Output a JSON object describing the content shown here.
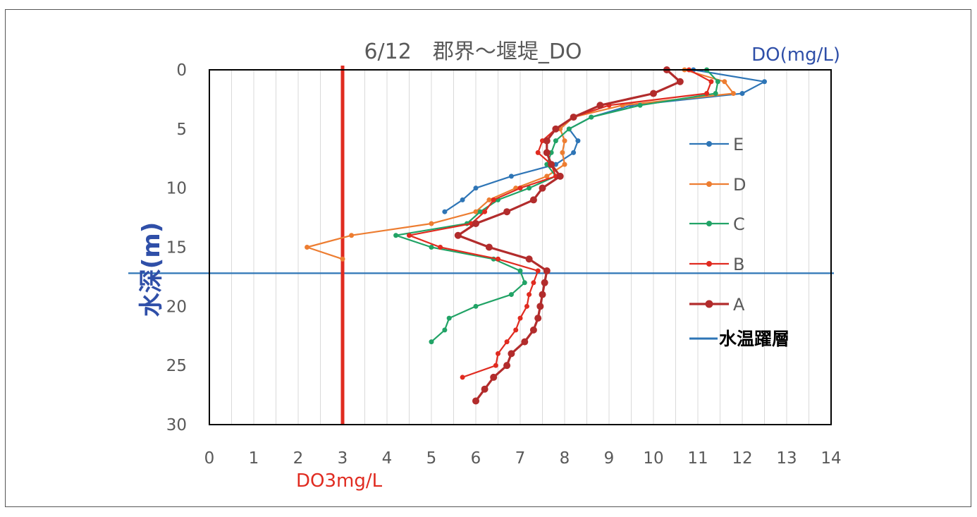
{
  "chart_data": {
    "type": "line",
    "title": "6/12　郡界～堰堤_DO",
    "xlabel": "DO(mg/L)",
    "ylabel": "水深(m)",
    "xlim": [
      0,
      14
    ],
    "ylim": [
      0,
      30
    ],
    "y_inverted": true,
    "x_ticks": [
      "0",
      "1",
      "2",
      "3",
      "4",
      "5",
      "6",
      "7",
      "8",
      "9",
      "10",
      "11",
      "12",
      "13",
      "14"
    ],
    "y_ticks": [
      "0",
      "5",
      "10",
      "15",
      "20",
      "25",
      "30"
    ],
    "grid": "vertical",
    "legend_position": "right",
    "series": [
      {
        "name": "E",
        "color": "#2e75b6",
        "marker_size": 3.5,
        "width": 2.2,
        "points": [
          [
            10.9,
            0
          ],
          [
            12.5,
            1
          ],
          [
            12.0,
            2
          ],
          [
            9.5,
            3
          ],
          [
            8.6,
            4
          ],
          [
            8.1,
            5
          ],
          [
            8.3,
            6
          ],
          [
            8.2,
            7
          ],
          [
            7.8,
            8
          ],
          [
            6.8,
            9
          ],
          [
            6.0,
            10
          ],
          [
            5.7,
            11
          ],
          [
            5.3,
            12
          ]
        ]
      },
      {
        "name": "D",
        "color": "#ed7d31",
        "marker_size": 3.5,
        "width": 2.2,
        "points": [
          [
            10.7,
            0
          ],
          [
            11.6,
            1
          ],
          [
            11.8,
            2
          ],
          [
            9.3,
            3
          ],
          [
            8.2,
            4
          ],
          [
            7.9,
            5
          ],
          [
            8.0,
            6
          ],
          [
            7.95,
            7
          ],
          [
            8.0,
            8
          ],
          [
            7.6,
            9
          ],
          [
            6.9,
            10
          ],
          [
            6.3,
            11
          ],
          [
            6.0,
            12
          ],
          [
            5.0,
            13
          ],
          [
            3.2,
            14
          ],
          [
            2.2,
            15
          ],
          [
            3.0,
            16
          ]
        ]
      },
      {
        "name": "C",
        "color": "#21a366",
        "marker_size": 3.5,
        "width": 2.2,
        "points": [
          [
            11.2,
            0
          ],
          [
            11.45,
            1
          ],
          [
            11.4,
            2
          ],
          [
            9.7,
            3
          ],
          [
            8.6,
            4
          ],
          [
            8.1,
            5
          ],
          [
            7.8,
            6
          ],
          [
            7.7,
            7
          ],
          [
            7.6,
            8
          ],
          [
            7.8,
            9
          ],
          [
            7.2,
            10
          ],
          [
            6.5,
            11
          ],
          [
            6.1,
            12
          ],
          [
            5.8,
            13
          ],
          [
            4.2,
            14
          ],
          [
            5.0,
            15
          ],
          [
            6.4,
            16
          ],
          [
            7.0,
            17
          ],
          [
            7.1,
            18
          ],
          [
            6.8,
            19
          ],
          [
            6.0,
            20
          ],
          [
            5.4,
            21
          ],
          [
            5.3,
            22
          ],
          [
            5.0,
            23
          ]
        ]
      },
      {
        "name": "B",
        "color": "#e02b20",
        "marker_size": 3.5,
        "width": 2.2,
        "points": [
          [
            10.8,
            0
          ],
          [
            11.3,
            1
          ],
          [
            11.2,
            2
          ],
          [
            9.0,
            3
          ],
          [
            8.2,
            4
          ],
          [
            7.8,
            5
          ],
          [
            7.5,
            6
          ],
          [
            7.4,
            7
          ],
          [
            7.7,
            8
          ],
          [
            7.8,
            9
          ],
          [
            7.0,
            10
          ],
          [
            6.4,
            11
          ],
          [
            6.2,
            12
          ],
          [
            5.9,
            13
          ],
          [
            4.5,
            14
          ],
          [
            5.2,
            15
          ],
          [
            6.5,
            16
          ],
          [
            7.4,
            17
          ],
          [
            7.3,
            18
          ],
          [
            7.2,
            19
          ],
          [
            7.15,
            20
          ],
          [
            7.0,
            21
          ],
          [
            6.9,
            22
          ],
          [
            6.7,
            23
          ],
          [
            6.5,
            24
          ],
          [
            6.45,
            25
          ],
          [
            5.7,
            26
          ]
        ]
      },
      {
        "name": "A",
        "color": "#b22c2c",
        "marker_size": 5,
        "width": 3.2,
        "points": [
          [
            10.3,
            0
          ],
          [
            10.6,
            1
          ],
          [
            10.0,
            2
          ],
          [
            8.8,
            3
          ],
          [
            8.2,
            4
          ],
          [
            7.8,
            5
          ],
          [
            7.6,
            6
          ],
          [
            7.6,
            7
          ],
          [
            7.7,
            8
          ],
          [
            7.9,
            9
          ],
          [
            7.5,
            10
          ],
          [
            7.3,
            11
          ],
          [
            6.7,
            12
          ],
          [
            6.0,
            13
          ],
          [
            5.6,
            14
          ],
          [
            6.3,
            15
          ],
          [
            7.2,
            16
          ],
          [
            7.6,
            17
          ],
          [
            7.55,
            18
          ],
          [
            7.5,
            19
          ],
          [
            7.45,
            20
          ],
          [
            7.4,
            21
          ],
          [
            7.3,
            22
          ],
          [
            7.1,
            23
          ],
          [
            6.8,
            24
          ],
          [
            6.7,
            25
          ],
          [
            6.4,
            26
          ],
          [
            6.2,
            27
          ],
          [
            6.0,
            28
          ]
        ]
      }
    ],
    "reference_lines": [
      {
        "name": "水温躍層",
        "orientation": "horizontal",
        "y": 17.2,
        "color": "#2e75b6"
      },
      {
        "name": "DO3mg/L",
        "orientation": "vertical",
        "x": 3,
        "color": "#e02b20"
      }
    ]
  }
}
